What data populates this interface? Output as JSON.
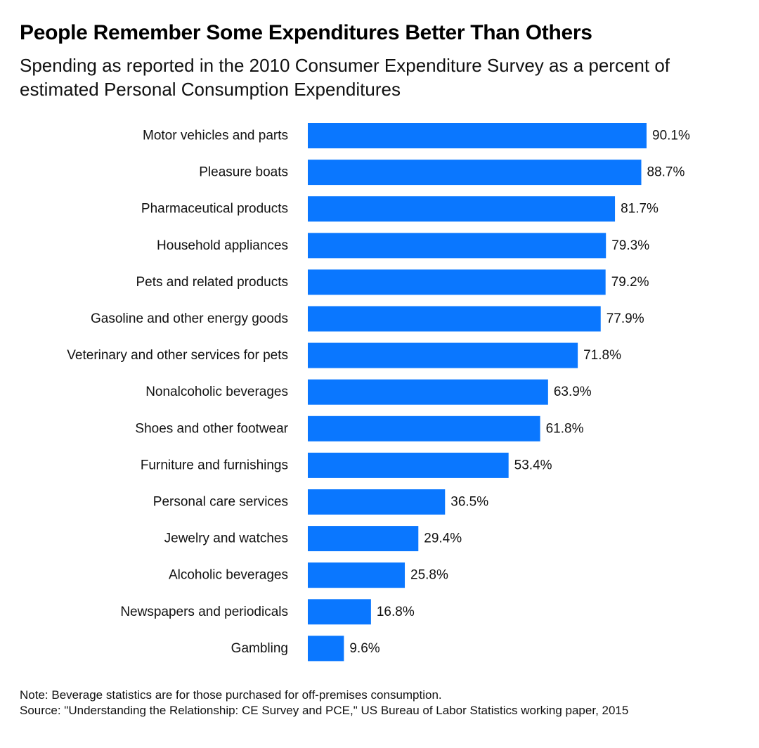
{
  "chart_data": {
    "type": "bar",
    "orientation": "horizontal",
    "title": "People Remember Some Expenditures Better Than Others",
    "subtitle": "Spending as reported in the 2010 Consumer Expenditure Survey as a percent of estimated Personal Consumption Expenditures",
    "categories": [
      "Motor vehicles and parts",
      "Pleasure boats",
      "Pharmaceutical products",
      "Household appliances",
      "Pets and related products",
      "Gasoline and other energy goods",
      "Veterinary and other services for pets",
      "Nonalcoholic beverages",
      "Shoes and other footwear",
      "Furniture and furnishings",
      "Personal care services",
      "Jewelry and watches",
      "Alcoholic beverages",
      "Newspapers and periodicals",
      "Gambling"
    ],
    "values": [
      90.1,
      88.7,
      81.7,
      79.3,
      79.2,
      77.9,
      71.8,
      63.9,
      61.8,
      53.4,
      36.5,
      29.4,
      25.8,
      16.8,
      9.6
    ],
    "value_labels": [
      "90.1%",
      "88.7%",
      "81.7%",
      "79.3%",
      "79.2%",
      "77.9%",
      "71.8%",
      "63.9%",
      "61.8%",
      "53.4%",
      "36.5%",
      "29.4%",
      "25.8%",
      "16.8%",
      "9.6%"
    ],
    "unit": "%",
    "xlim": [
      0,
      90.1
    ],
    "grid": false,
    "bar_color": "#0a77ff"
  },
  "notes": {
    "note": "Note: Beverage statistics are for those purchased for off-premises consumption.",
    "source": "Source: \"Understanding the Relationship: CE Survey and PCE,\" US Bureau of Labor Statistics working paper, 2015"
  }
}
